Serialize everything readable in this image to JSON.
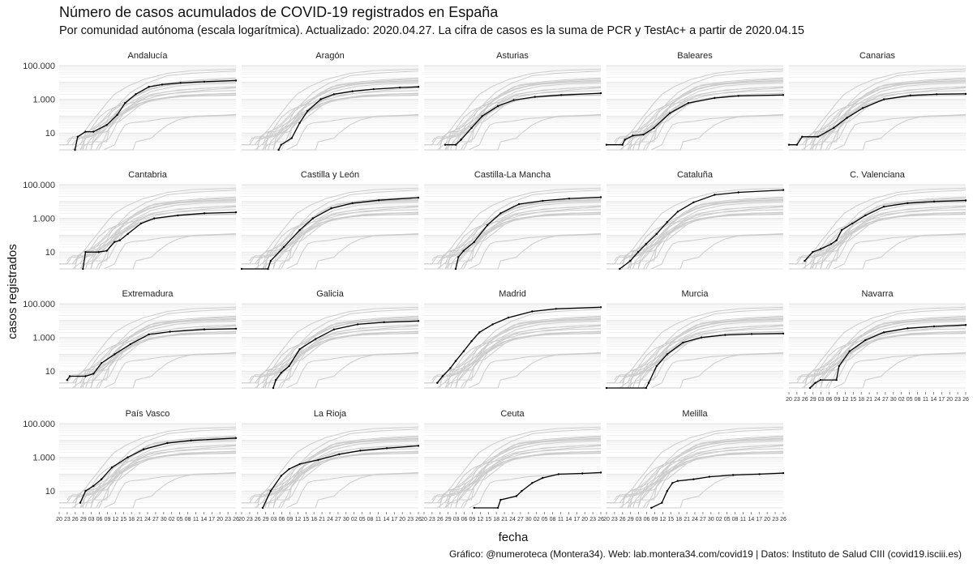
{
  "header": {
    "title": "Número de casos acumulados de COVID-19 registrados en España",
    "subtitle": "Por comunidad autónoma (escala logarítmica). Actualizado: 2020.04.27. La cifra de casos es la suma de PCR y TestAc+ a partir de 2020.04.15",
    "caption": "Gráfico: @numeroteca (Montera34). Web: lab.montera34.com/covid19 | Datos: Instituto de Salud CIII (covid19.isciii.es)"
  },
  "chart_data": {
    "type": "line",
    "facet": "small-multiples",
    "xlabel": "fecha",
    "ylabel": "casos registrados",
    "y_scale": "log10",
    "ylim": [
      1,
      100000
    ],
    "y_ticks": [
      10,
      1000,
      100000
    ],
    "y_tick_labels": [
      "10",
      "1.000",
      "100.000"
    ],
    "x_range": [
      "2020-02-20",
      "2020-04-27"
    ],
    "x_tick_labels": [
      "20",
      "23",
      "26",
      "29",
      "03",
      "06",
      "09",
      "12",
      "15",
      "18",
      "21",
      "24",
      "27",
      "30",
      "02",
      "05",
      "08",
      "11",
      "14",
      "17",
      "20",
      "23",
      "26"
    ],
    "grid": true,
    "colors": {
      "highlight": "#000000",
      "background_lines": "#cccccc",
      "grid": "#e6e6e6"
    },
    "panels": [
      {
        "name": "Andalucía",
        "points": [
          [
            "2020-02-26",
            1
          ],
          [
            "2020-02-27",
            6
          ],
          [
            "2020-03-01",
            12
          ],
          [
            "2020-03-04",
            12
          ],
          [
            "2020-03-09",
            30
          ],
          [
            "2020-03-13",
            120
          ],
          [
            "2020-03-16",
            600
          ],
          [
            "2020-03-20",
            2000
          ],
          [
            "2020-03-25",
            5500
          ],
          [
            "2020-03-30",
            7500
          ],
          [
            "2020-04-06",
            9500
          ],
          [
            "2020-04-15",
            11000
          ],
          [
            "2020-04-27",
            13000
          ]
        ]
      },
      {
        "name": "Aragón",
        "points": [
          [
            "2020-03-05",
            1
          ],
          [
            "2020-03-06",
            2
          ],
          [
            "2020-03-10",
            5
          ],
          [
            "2020-03-13",
            40
          ],
          [
            "2020-03-16",
            200
          ],
          [
            "2020-03-21",
            1000
          ],
          [
            "2020-03-26",
            2000
          ],
          [
            "2020-04-02",
            3000
          ],
          [
            "2020-04-10",
            4000
          ],
          [
            "2020-04-20",
            5000
          ],
          [
            "2020-04-27",
            5500
          ]
        ]
      },
      {
        "name": "Asturias",
        "points": [
          [
            "2020-02-28",
            2
          ],
          [
            "2020-03-03",
            2
          ],
          [
            "2020-03-05",
            4
          ],
          [
            "2020-03-09",
            20
          ],
          [
            "2020-03-13",
            100
          ],
          [
            "2020-03-19",
            400
          ],
          [
            "2020-03-25",
            900
          ],
          [
            "2020-04-02",
            1400
          ],
          [
            "2020-04-12",
            1800
          ],
          [
            "2020-04-27",
            2300
          ]
        ]
      },
      {
        "name": "Baleares",
        "points": [
          [
            "2020-02-20",
            2
          ],
          [
            "2020-02-26",
            2
          ],
          [
            "2020-02-27",
            4
          ],
          [
            "2020-03-01",
            7
          ],
          [
            "2020-03-05",
            8
          ],
          [
            "2020-03-09",
            20
          ],
          [
            "2020-03-15",
            150
          ],
          [
            "2020-03-22",
            600
          ],
          [
            "2020-04-01",
            1200
          ],
          [
            "2020-04-10",
            1600
          ],
          [
            "2020-04-27",
            1800
          ]
        ]
      },
      {
        "name": "Canarias",
        "points": [
          [
            "2020-02-20",
            2
          ],
          [
            "2020-02-23",
            2
          ],
          [
            "2020-02-25",
            6
          ],
          [
            "2020-03-02",
            6
          ],
          [
            "2020-03-08",
            20
          ],
          [
            "2020-03-13",
            80
          ],
          [
            "2020-03-19",
            300
          ],
          [
            "2020-03-27",
            1000
          ],
          [
            "2020-04-06",
            1700
          ],
          [
            "2020-04-16",
            2000
          ],
          [
            "2020-04-27",
            2100
          ]
        ]
      },
      {
        "name": "Cantabria",
        "points": [
          [
            "2020-02-29",
            1
          ],
          [
            "2020-03-01",
            10
          ],
          [
            "2020-03-06",
            10
          ],
          [
            "2020-03-09",
            12
          ],
          [
            "2020-03-12",
            40
          ],
          [
            "2020-03-14",
            50
          ],
          [
            "2020-03-17",
            120
          ],
          [
            "2020-03-22",
            500
          ],
          [
            "2020-03-27",
            1000
          ],
          [
            "2020-04-05",
            1500
          ],
          [
            "2020-04-15",
            2000
          ],
          [
            "2020-04-27",
            2300
          ]
        ]
      },
      {
        "name": "Castilla y León",
        "points": [
          [
            "2020-02-20",
            1
          ],
          [
            "2020-03-01",
            1
          ],
          [
            "2020-03-02",
            3
          ],
          [
            "2020-03-07",
            20
          ],
          [
            "2020-03-13",
            200
          ],
          [
            "2020-03-18",
            1000
          ],
          [
            "2020-03-25",
            4000
          ],
          [
            "2020-04-02",
            8000
          ],
          [
            "2020-04-12",
            12000
          ],
          [
            "2020-04-27",
            17000
          ]
        ]
      },
      {
        "name": "Castilla-La Mancha",
        "points": [
          [
            "2020-03-03",
            1
          ],
          [
            "2020-03-04",
            5
          ],
          [
            "2020-03-06",
            12
          ],
          [
            "2020-03-10",
            40
          ],
          [
            "2020-03-15",
            400
          ],
          [
            "2020-03-20",
            2000
          ],
          [
            "2020-03-27",
            7000
          ],
          [
            "2020-04-05",
            11000
          ],
          [
            "2020-04-15",
            15000
          ],
          [
            "2020-04-27",
            18000
          ]
        ]
      },
      {
        "name": "Cataluña",
        "points": [
          [
            "2020-02-25",
            1
          ],
          [
            "2020-02-29",
            3
          ],
          [
            "2020-03-03",
            10
          ],
          [
            "2020-03-06",
            30
          ],
          [
            "2020-03-10",
            120
          ],
          [
            "2020-03-14",
            600
          ],
          [
            "2020-03-18",
            2500
          ],
          [
            "2020-03-24",
            9000
          ],
          [
            "2020-04-01",
            25000
          ],
          [
            "2020-04-10",
            35000
          ],
          [
            "2020-04-27",
            48000
          ]
        ]
      },
      {
        "name": "C. Valenciana",
        "points": [
          [
            "2020-02-26",
            3
          ],
          [
            "2020-02-29",
            10
          ],
          [
            "2020-03-03",
            15
          ],
          [
            "2020-03-07",
            30
          ],
          [
            "2020-03-09",
            50
          ],
          [
            "2020-03-11",
            200
          ],
          [
            "2020-03-15",
            500
          ],
          [
            "2020-03-20",
            1500
          ],
          [
            "2020-03-27",
            5000
          ],
          [
            "2020-04-05",
            8000
          ],
          [
            "2020-04-15",
            10000
          ],
          [
            "2020-04-27",
            11500
          ]
        ]
      },
      {
        "name": "Extremadura",
        "points": [
          [
            "2020-02-23",
            3
          ],
          [
            "2020-02-24",
            5
          ],
          [
            "2020-03-01",
            5
          ],
          [
            "2020-03-04",
            7
          ],
          [
            "2020-03-07",
            30
          ],
          [
            "2020-03-12",
            100
          ],
          [
            "2020-03-18",
            400
          ],
          [
            "2020-03-25",
            1500
          ],
          [
            "2020-04-02",
            2200
          ],
          [
            "2020-04-15",
            3000
          ],
          [
            "2020-04-27",
            3300
          ]
        ]
      },
      {
        "name": "Galicia",
        "points": [
          [
            "2020-03-03",
            1
          ],
          [
            "2020-03-04",
            3
          ],
          [
            "2020-03-06",
            8
          ],
          [
            "2020-03-09",
            20
          ],
          [
            "2020-03-13",
            200
          ],
          [
            "2020-03-19",
            800
          ],
          [
            "2020-03-26",
            3000
          ],
          [
            "2020-04-04",
            6000
          ],
          [
            "2020-04-14",
            8000
          ],
          [
            "2020-04-27",
            9500
          ]
        ]
      },
      {
        "name": "Madrid",
        "points": [
          [
            "2020-02-25",
            2
          ],
          [
            "2020-02-27",
            5
          ],
          [
            "2020-03-01",
            15
          ],
          [
            "2020-03-03",
            40
          ],
          [
            "2020-03-06",
            150
          ],
          [
            "2020-03-09",
            600
          ],
          [
            "2020-03-12",
            2000
          ],
          [
            "2020-03-17",
            6000
          ],
          [
            "2020-03-23",
            15000
          ],
          [
            "2020-04-01",
            35000
          ],
          [
            "2020-04-10",
            50000
          ],
          [
            "2020-04-27",
            62000
          ]
        ]
      },
      {
        "name": "Murcia",
        "points": [
          [
            "2020-02-20",
            1
          ],
          [
            "2020-03-06",
            1
          ],
          [
            "2020-03-07",
            2
          ],
          [
            "2020-03-10",
            20
          ],
          [
            "2020-03-14",
            100
          ],
          [
            "2020-03-20",
            500
          ],
          [
            "2020-03-27",
            1000
          ],
          [
            "2020-04-05",
            1400
          ],
          [
            "2020-04-15",
            1600
          ],
          [
            "2020-04-27",
            1700
          ]
        ]
      },
      {
        "name": "Navarra",
        "points": [
          [
            "2020-02-28",
            1
          ],
          [
            "2020-03-01",
            2
          ],
          [
            "2020-03-03",
            3
          ],
          [
            "2020-03-09",
            3
          ],
          [
            "2020-03-10",
            20
          ],
          [
            "2020-03-14",
            150
          ],
          [
            "2020-03-20",
            700
          ],
          [
            "2020-03-27",
            2000
          ],
          [
            "2020-04-05",
            3500
          ],
          [
            "2020-04-15",
            4500
          ],
          [
            "2020-04-27",
            5500
          ]
        ]
      },
      {
        "name": "País Vasco",
        "points": [
          [
            "2020-02-28",
            2
          ],
          [
            "2020-03-01",
            10
          ],
          [
            "2020-03-04",
            20
          ],
          [
            "2020-03-07",
            50
          ],
          [
            "2020-03-11",
            250
          ],
          [
            "2020-03-17",
            1000
          ],
          [
            "2020-03-23",
            3000
          ],
          [
            "2020-04-01",
            7000
          ],
          [
            "2020-04-10",
            10000
          ],
          [
            "2020-04-27",
            14000
          ]
        ]
      },
      {
        "name": "La Rioja",
        "points": [
          [
            "2020-02-28",
            1
          ],
          [
            "2020-03-02",
            10
          ],
          [
            "2020-03-06",
            80
          ],
          [
            "2020-03-09",
            200
          ],
          [
            "2020-03-13",
            400
          ],
          [
            "2020-03-20",
            700
          ],
          [
            "2020-03-28",
            1500
          ],
          [
            "2020-04-05",
            2500
          ],
          [
            "2020-04-15",
            3500
          ],
          [
            "2020-04-27",
            4800
          ]
        ]
      },
      {
        "name": "Ceuta",
        "points": [
          [
            "2020-03-10",
            1
          ],
          [
            "2020-03-19",
            1
          ],
          [
            "2020-03-20",
            3
          ],
          [
            "2020-03-26",
            5
          ],
          [
            "2020-03-28",
            10
          ],
          [
            "2020-04-01",
            30
          ],
          [
            "2020-04-05",
            60
          ],
          [
            "2020-04-11",
            100
          ],
          [
            "2020-04-20",
            110
          ],
          [
            "2020-04-27",
            125
          ]
        ]
      },
      {
        "name": "Melilla",
        "points": [
          [
            "2020-03-08",
            1
          ],
          [
            "2020-03-12",
            2
          ],
          [
            "2020-03-14",
            10
          ],
          [
            "2020-03-16",
            30
          ],
          [
            "2020-03-18",
            40
          ],
          [
            "2020-03-24",
            50
          ],
          [
            "2020-03-30",
            70
          ],
          [
            "2020-04-08",
            90
          ],
          [
            "2020-04-18",
            100
          ],
          [
            "2020-04-27",
            115
          ]
        ]
      }
    ]
  }
}
